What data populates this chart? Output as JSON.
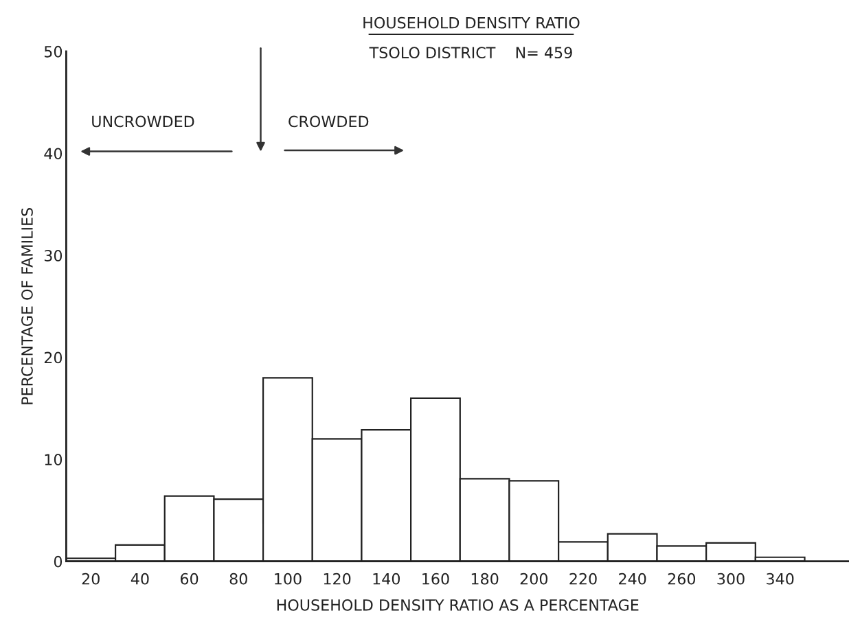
{
  "chart_data": {
    "type": "bar",
    "title": "HOUSEHOLD DENSITY RATIO",
    "subtitle": "TSOLO DISTRICT    N= 459",
    "xlabel": "HOUSEHOLD DENSITY RATIO AS A PERCENTAGE",
    "ylabel": "PERCENTAGE OF FAMILIES",
    "categories": [
      "20",
      "40",
      "60",
      "80",
      "100",
      "120",
      "140",
      "160",
      "180",
      "200",
      "220",
      "240",
      "260",
      "300",
      "340"
    ],
    "values": [
      0.3,
      1.6,
      6.4,
      6.1,
      18.0,
      12.0,
      12.9,
      16.0,
      8.1,
      7.9,
      1.9,
      2.7,
      1.5,
      1.8,
      0.4
    ],
    "color": "#ffffff",
    "ylim": [
      0,
      50
    ],
    "yticks": [
      0,
      10,
      20,
      30,
      40,
      50
    ],
    "grid": false,
    "legend": false,
    "annotations": [
      "UNCROWDED",
      "CROWDED"
    ]
  }
}
